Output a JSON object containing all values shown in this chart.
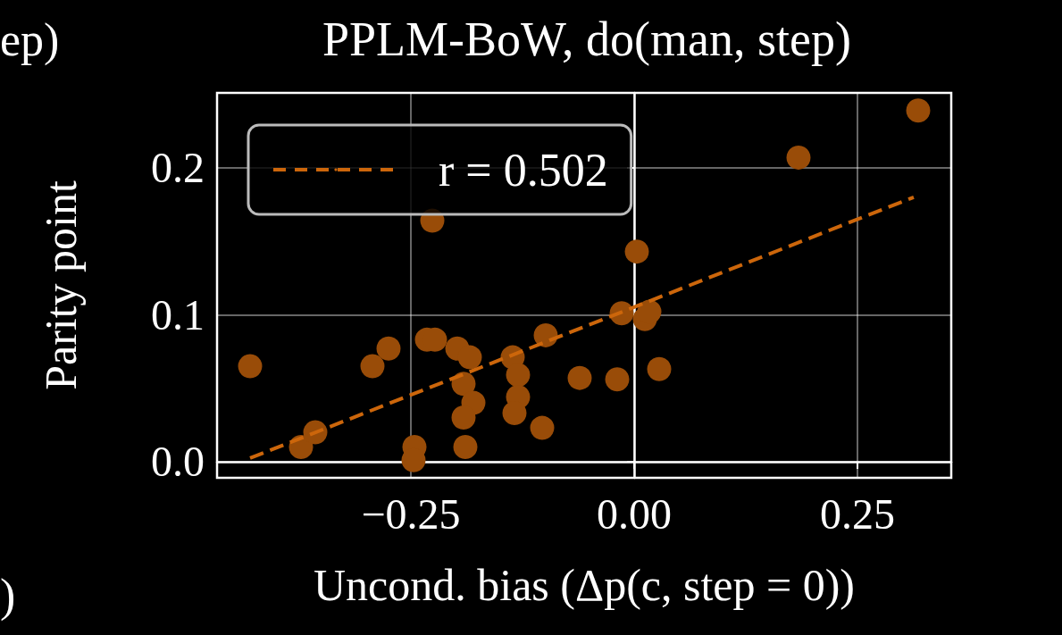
{
  "chart_data": {
    "type": "scatter",
    "title": "PPLM-BoW, do(man, step)",
    "xlabel": "Uncond. bias (Δp(c, step = 0))",
    "ylabel": "Parity point",
    "annotations": [
      "ep)",
      ")"
    ],
    "xlim": [
      -0.467,
      0.355
    ],
    "ylim": [
      -0.011,
      0.251
    ],
    "xticks": [
      {
        "value": -0.25,
        "label": "−0.25"
      },
      {
        "value": 0,
        "label": "0.00"
      },
      {
        "value": 0.25,
        "label": "0.25"
      }
    ],
    "yticks": [
      {
        "value": 0,
        "label": "0.0"
      },
      {
        "value": 0.1,
        "label": "0.1"
      },
      {
        "value": 0.2,
        "label": "0.2"
      }
    ],
    "grid": true,
    "legend": "top left",
    "series": [
      {
        "color": "#994c08",
        "marker": "circle",
        "x": [
          -0.43,
          -0.373,
          -0.357,
          -0.293,
          -0.275,
          -0.246,
          -0.247,
          -0.232,
          -0.223,
          -0.226,
          -0.198,
          -0.184,
          -0.191,
          -0.18,
          -0.191,
          -0.189,
          -0.136,
          -0.13,
          -0.13,
          -0.134,
          -0.103,
          -0.099,
          -0.061,
          -0.019,
          -0.014,
          0.003,
          0.012,
          0.017,
          0.028,
          0.184,
          0.318
        ],
        "values": [
          0.065,
          0.01,
          0.02,
          0.065,
          0.077,
          0.01,
          0.001,
          0.083,
          0.083,
          0.164,
          0.077,
          0.071,
          0.053,
          0.04,
          0.03,
          0.01,
          0.071,
          0.059,
          0.044,
          0.033,
          0.023,
          0.086,
          0.057,
          0.056,
          0.101,
          0.143,
          0.097,
          0.102,
          0.063,
          0.207,
          0.239
        ]
      },
      {
        "type": "line",
        "name": "r = 0.502",
        "color": "#cc660b",
        "line_style": "dashed",
        "marker": "none",
        "x": [
          -0.43,
          0.313
        ],
        "values": [
          0.0024,
          0.18
        ]
      }
    ]
  }
}
